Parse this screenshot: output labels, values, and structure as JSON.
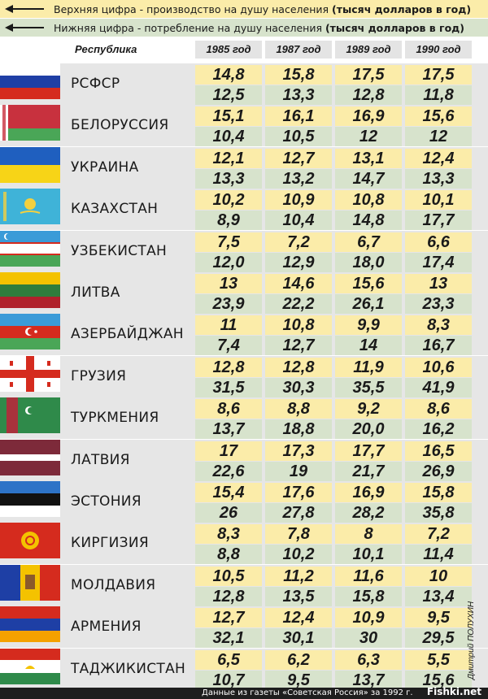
{
  "legend": {
    "top_prefix": "Верхняя цифра - производство на душу населения ",
    "top_bold": "(тысяч долларов в год)",
    "bottom_prefix": "Нижняя цифра - потребление на душу населения ",
    "bottom_bold": "(тысяч долларов в год)"
  },
  "header": {
    "republic": "Республика",
    "years": [
      "1985 год",
      "1987 год",
      "1989 год",
      "1990 год"
    ]
  },
  "colors": {
    "production_bg": "#fbeca9",
    "consumption_bg": "#d7e3cc",
    "row_bg": "#e6e6e6"
  },
  "rows": [
    {
      "name": "РСФСР",
      "flag": "russia-flag-icon",
      "production": [
        "14,8",
        "15,8",
        "17,5",
        "17,5"
      ],
      "consumption": [
        "12,5",
        "13,3",
        "12,8",
        "11,8"
      ]
    },
    {
      "name": "БЕЛОРУССИЯ",
      "flag": "belarus-flag-icon",
      "production": [
        "15,1",
        "16,1",
        "16,9",
        "15,6"
      ],
      "consumption": [
        "10,4",
        "10,5",
        "12",
        "12"
      ]
    },
    {
      "name": "УКРАИНА",
      "flag": "ukraine-flag-icon",
      "production": [
        "12,1",
        "12,7",
        "13,1",
        "12,4"
      ],
      "consumption": [
        "13,3",
        "13,2",
        "14,7",
        "13,3"
      ]
    },
    {
      "name": "КАЗАХСТАН",
      "flag": "kazakhstan-flag-icon",
      "production": [
        "10,2",
        "10,9",
        "10,8",
        "10,1"
      ],
      "consumption": [
        "8,9",
        "10,4",
        "14,8",
        "17,7"
      ]
    },
    {
      "name": "УЗБЕКИСТАН",
      "flag": "uzbekistan-flag-icon",
      "production": [
        "7,5",
        "7,2",
        "6,7",
        "6,6"
      ],
      "consumption": [
        "12,0",
        "12,9",
        "18,0",
        "17,4"
      ]
    },
    {
      "name": "ЛИТВА",
      "flag": "lithuania-flag-icon",
      "production": [
        "13",
        "14,6",
        "15,6",
        "13"
      ],
      "consumption": [
        "23,9",
        "22,2",
        "26,1",
        "23,3"
      ]
    },
    {
      "name": "АЗЕРБАЙДЖАН",
      "flag": "azerbaijan-flag-icon",
      "production": [
        "11",
        "10,8",
        "9,9",
        "8,3"
      ],
      "consumption": [
        "7,4",
        "12,7",
        "14",
        "16,7"
      ]
    },
    {
      "name": "ГРУЗИЯ",
      "flag": "georgia-flag-icon",
      "production": [
        "12,8",
        "12,8",
        "11,9",
        "10,6"
      ],
      "consumption": [
        "31,5",
        "30,3",
        "35,5",
        "41,9"
      ]
    },
    {
      "name": "ТУРКМЕНИЯ",
      "flag": "turkmenistan-flag-icon",
      "production": [
        "8,6",
        "8,8",
        "9,2",
        "8,6"
      ],
      "consumption": [
        "13,7",
        "18,8",
        "20,0",
        "16,2"
      ]
    },
    {
      "name": "ЛАТВИЯ",
      "flag": "latvia-flag-icon",
      "production": [
        "17",
        "17,3",
        "17,7",
        "16,5"
      ],
      "consumption": [
        "22,6",
        "19",
        "21,7",
        "26,9"
      ]
    },
    {
      "name": "ЭСТОНИЯ",
      "flag": "estonia-flag-icon",
      "production": [
        "15,4",
        "17,6",
        "16,9",
        "15,8"
      ],
      "consumption": [
        "26",
        "27,8",
        "28,2",
        "35,8"
      ]
    },
    {
      "name": "КИРГИЗИЯ",
      "flag": "kyrgyzstan-flag-icon",
      "production": [
        "8,3",
        "7,8",
        "8",
        "7,2"
      ],
      "consumption": [
        "8,8",
        "10,2",
        "10,1",
        "11,4"
      ]
    },
    {
      "name": "МОЛДАВИЯ",
      "flag": "moldova-flag-icon",
      "production": [
        "10,5",
        "11,2",
        "11,6",
        "10"
      ],
      "consumption": [
        "12,8",
        "13,5",
        "15,8",
        "13,4"
      ]
    },
    {
      "name": "АРМЕНИЯ",
      "flag": "armenia-flag-icon",
      "production": [
        "12,7",
        "12,4",
        "10,9",
        "9,5"
      ],
      "consumption": [
        "32,1",
        "30,1",
        "30",
        "29,5"
      ]
    },
    {
      "name": "ТАДЖИКИСТАН",
      "flag": "tajikistan-flag-icon",
      "production": [
        "6,5",
        "6,2",
        "6,3",
        "5,5"
      ],
      "consumption": [
        "10,7",
        "9,5",
        "13,7",
        "15,6"
      ]
    }
  ],
  "footer": {
    "source": "Данные из газеты «Советская Россия» за 1992 г.",
    "author": "Дмитрий ПОЛУХИН",
    "logo": "Fishki.net"
  }
}
